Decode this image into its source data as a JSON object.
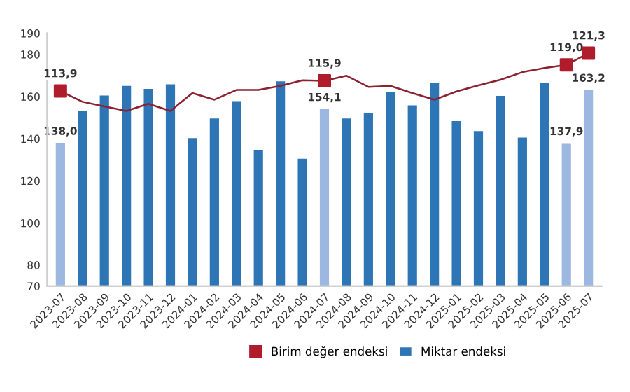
{
  "chart_data": {
    "type": "bar",
    "categories": [
      "2023-07",
      "2023-08",
      "2023-09",
      "2023-10",
      "2023-11",
      "2023-12",
      "2024-01",
      "2024-02",
      "2024-03",
      "2024-04",
      "2024-05",
      "2024-06",
      "2024-07",
      "2024-08",
      "2024-09",
      "2024-10",
      "2024-11",
      "2024-12",
      "2025-01",
      "2025-02",
      "2025-03",
      "2025-04",
      "2025-05",
      "2025-06",
      "2025-07"
    ],
    "ylim": [
      70,
      190
    ],
    "yticks": [
      70,
      80,
      100,
      120,
      140,
      160,
      180,
      190
    ],
    "y2lim": [
      75.7,
      125.2
    ],
    "grid": false,
    "legend": "bottom",
    "series": [
      {
        "name": "Miktar endeksi",
        "color": "#2e75b6",
        "colors": [
          "#9db8e0",
          "#2e75b6",
          "#2e75b6",
          "#2e75b6",
          "#2e75b6",
          "#2e75b6",
          "#2e75b6",
          "#2e75b6",
          "#2e75b6",
          "#2e75b6",
          "#2e75b6",
          "#2e75b6",
          "#9db8e0",
          "#2e75b6",
          "#2e75b6",
          "#2e75b6",
          "#2e75b6",
          "#2e75b6",
          "#2e75b6",
          "#2e75b6",
          "#2e75b6",
          "#2e75b6",
          "#2e75b6",
          "#9db8e0",
          "#9db8e0"
        ],
        "values": [
          138.0,
          153.2,
          160.5,
          165.0,
          163.6,
          165.8,
          140.3,
          149.6,
          157.8,
          134.7,
          167.2,
          130.5,
          154.1,
          149.6,
          152.0,
          162.3,
          155.8,
          166.3,
          148.3,
          143.6,
          160.3,
          140.5,
          166.5,
          137.9,
          163.2
        ],
        "value_labels": [
          "138,0",
          null,
          null,
          null,
          null,
          null,
          null,
          null,
          null,
          null,
          null,
          null,
          "154,1",
          null,
          null,
          null,
          null,
          null,
          null,
          null,
          null,
          null,
          null,
          "137,9",
          "163,2"
        ]
      },
      {
        "type": "line",
        "axis": "y2",
        "color": "#8b2232",
        "values": [
          113.9,
          111.8,
          110.9,
          110.0,
          111.4,
          110.0,
          113.5,
          112.2,
          114.1,
          114.1,
          114.9,
          116.0,
          115.9,
          116.9,
          114.7,
          114.9,
          113.5,
          112.2,
          113.8,
          115.0,
          116.1,
          117.6,
          118.4,
          119.0,
          121.3
        ]
      },
      {
        "name": "Birim değer endeksi",
        "type": "scatter",
        "axis": "y2",
        "color": "#b01c2c",
        "marker": "square",
        "values": [
          113.9,
          null,
          null,
          null,
          null,
          null,
          null,
          null,
          null,
          null,
          null,
          null,
          115.9,
          null,
          null,
          null,
          null,
          null,
          null,
          null,
          null,
          null,
          null,
          119.0,
          121.3
        ],
        "value_labels": [
          "113,9",
          null,
          null,
          null,
          null,
          null,
          null,
          null,
          null,
          null,
          null,
          null,
          "115,9",
          null,
          null,
          null,
          null,
          null,
          null,
          null,
          null,
          null,
          null,
          "119,0",
          "121,3"
        ]
      }
    ]
  }
}
